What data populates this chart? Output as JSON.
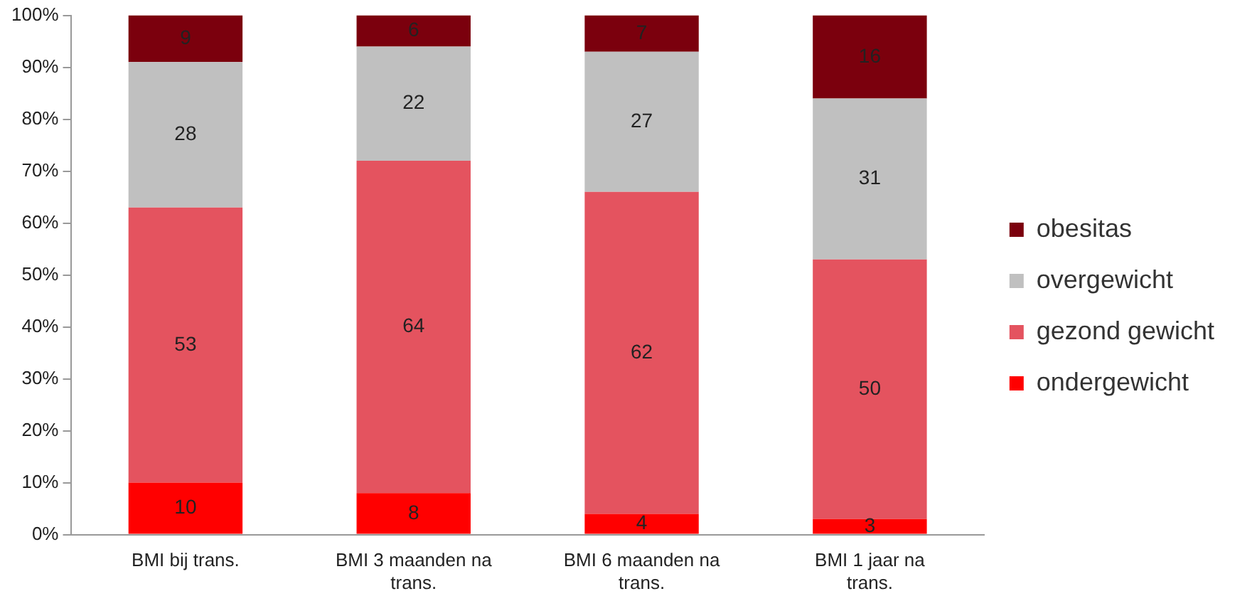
{
  "chart_data": {
    "type": "bar",
    "stacked": true,
    "categories": [
      "BMI bij trans.",
      "BMI 3 maanden na trans.",
      "BMI 6 maanden na trans.",
      "BMI 1 jaar na trans."
    ],
    "series": [
      {
        "name": "ondergewicht",
        "color": "#ff0000",
        "values": [
          10,
          8,
          4,
          3
        ]
      },
      {
        "name": "gezond gewicht",
        "color": "#e4535f",
        "values": [
          53,
          64,
          62,
          50
        ]
      },
      {
        "name": "overgewicht",
        "color": "#c0c0c0",
        "values": [
          28,
          22,
          27,
          31
        ]
      },
      {
        "name": "obesitas",
        "color": "#7b000d",
        "values": [
          9,
          6,
          7,
          16
        ]
      }
    ],
    "ylim": [
      0,
      100
    ],
    "yticks": [
      {
        "value": 0,
        "label": "0%"
      },
      {
        "value": 10,
        "label": "10%"
      },
      {
        "value": 20,
        "label": "20%"
      },
      {
        "value": 30,
        "label": "30%"
      },
      {
        "value": 40,
        "label": "40%"
      },
      {
        "value": 50,
        "label": "50%"
      },
      {
        "value": 60,
        "label": "60%"
      },
      {
        "value": 70,
        "label": "70%"
      },
      {
        "value": 80,
        "label": "80%"
      },
      {
        "value": 90,
        "label": "90%"
      },
      {
        "value": 100,
        "label": "100%"
      }
    ],
    "grid": false,
    "legend": "right",
    "data_labels": true
  }
}
